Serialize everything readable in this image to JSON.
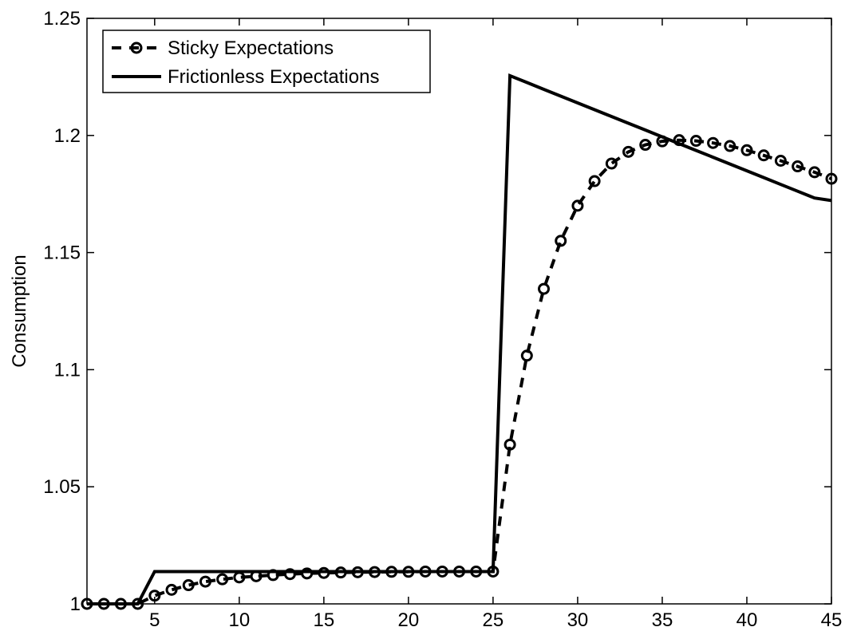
{
  "chart_data": {
    "type": "line",
    "title": "",
    "xlabel": "",
    "ylabel": "Consumption",
    "xlim": [
      1,
      45
    ],
    "ylim": [
      1.0,
      1.25
    ],
    "xticks": [
      5,
      10,
      15,
      20,
      25,
      30,
      35,
      40,
      45
    ],
    "yticks": [
      1.0,
      1.05,
      1.1,
      1.15,
      1.2,
      1.25
    ],
    "ytick_labels": [
      "1",
      "1.05",
      "1.1",
      "1.15",
      "1.2",
      "1.25"
    ],
    "grid": false,
    "legend_position": "top-left",
    "series": [
      {
        "name": "Sticky Expectations",
        "style": "dashed-circles",
        "color": "#000000",
        "x": [
          1,
          2,
          3,
          4,
          5,
          6,
          7,
          8,
          9,
          10,
          11,
          12,
          13,
          14,
          15,
          16,
          17,
          18,
          19,
          20,
          21,
          22,
          23,
          24,
          25,
          26,
          27,
          28,
          29,
          30,
          31,
          32,
          33,
          34,
          35,
          36,
          37,
          38,
          39,
          40,
          41,
          42,
          43,
          44,
          45
        ],
        "values": [
          1.0,
          1.0,
          1.0,
          1.0,
          1.0035,
          1.006,
          1.008,
          1.0095,
          1.0105,
          1.0113,
          1.0118,
          1.0123,
          1.0127,
          1.013,
          1.0132,
          1.0134,
          1.0135,
          1.0136,
          1.0137,
          1.0137,
          1.0138,
          1.0138,
          1.0138,
          1.0138,
          1.0138,
          1.068,
          1.106,
          1.1345,
          1.155,
          1.17,
          1.1805,
          1.188,
          1.193,
          1.196,
          1.1975,
          1.198,
          1.1977,
          1.1968,
          1.1955,
          1.1937,
          1.1915,
          1.1892,
          1.1868,
          1.1843,
          1.1815
        ]
      },
      {
        "name": "Frictionless Expectations",
        "style": "solid",
        "color": "#000000",
        "x": [
          1,
          2,
          3,
          4,
          5,
          6,
          7,
          8,
          9,
          10,
          11,
          12,
          13,
          14,
          15,
          16,
          17,
          18,
          19,
          20,
          21,
          22,
          23,
          24,
          25,
          26,
          27,
          28,
          29,
          30,
          31,
          32,
          33,
          34,
          35,
          36,
          37,
          38,
          39,
          40,
          41,
          42,
          43,
          44,
          45
        ],
        "values": [
          1.0,
          1.0,
          1.0,
          1.0,
          1.0138,
          1.0138,
          1.0138,
          1.0138,
          1.0138,
          1.0138,
          1.0138,
          1.0138,
          1.0138,
          1.0138,
          1.0138,
          1.0138,
          1.0138,
          1.0138,
          1.0138,
          1.0138,
          1.0138,
          1.0138,
          1.0138,
          1.0138,
          1.0138,
          1.2255,
          1.2226,
          1.2197,
          1.2168,
          1.2139,
          1.211,
          1.2081,
          1.2052,
          1.2023,
          1.1994,
          1.1965,
          1.1936,
          1.1907,
          1.1878,
          1.1849,
          1.182,
          1.1791,
          1.1762,
          1.1733,
          1.1722
        ]
      }
    ]
  }
}
